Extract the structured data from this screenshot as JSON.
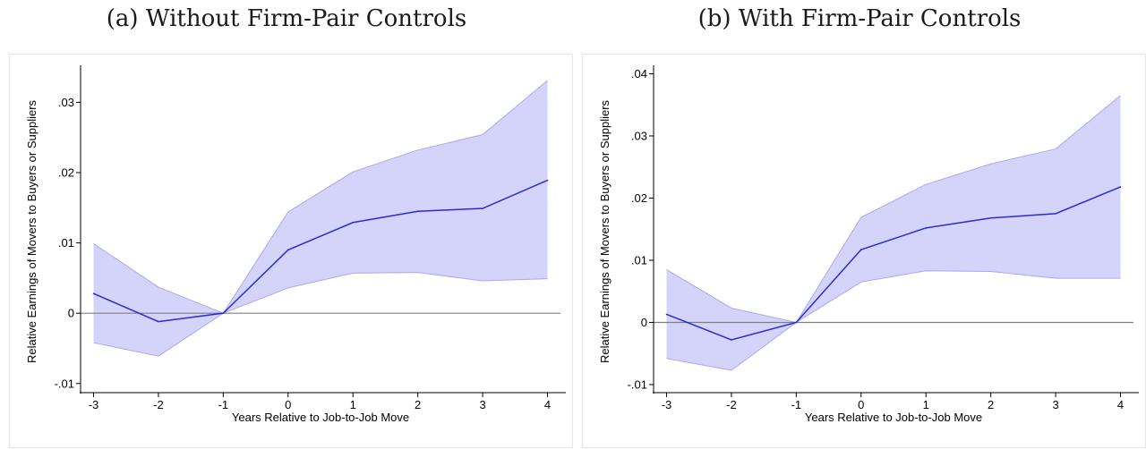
{
  "panels": [
    {
      "title": "(a) Without Firm-Pair Controls",
      "chart_data": {
        "type": "line",
        "title": "(a) Without Firm-Pair Controls",
        "xlabel": "Years Relative to Job-to-Job Move",
        "ylabel": "Relative Earnings of Movers to Buyers or Suppliers",
        "x": [
          -3,
          -2,
          -1,
          0,
          1,
          2,
          3,
          4
        ],
        "xticks": [
          "-3",
          "-2",
          "-1",
          "0",
          "1",
          "2",
          "3",
          "4"
        ],
        "yticks": [
          -0.01,
          0,
          0.01,
          0.02,
          0.03
        ],
        "ytick_labels": [
          "-.01",
          "0",
          ".01",
          ".02",
          ".03"
        ],
        "ylim": [
          -0.0113,
          0.0345
        ],
        "xlim": [
          -3.2,
          4.2
        ],
        "zero_line": true,
        "grid": false,
        "series": [
          {
            "values": [
              0.0028,
              -0.0012,
              0.0,
              0.009,
              0.0129,
              0.0145,
              0.0149,
              0.0189
            ],
            "ci_lower": [
              -0.0042,
              -0.0061,
              0.0,
              0.0036,
              0.0057,
              0.0058,
              0.0046,
              0.0049
            ],
            "ci_upper": [
              0.0099,
              0.0037,
              0.0,
              0.0144,
              0.0201,
              0.0232,
              0.0254,
              0.0331
            ],
            "line_color": "#2a2ad6",
            "band_color": "#d4d4fa",
            "band_edge_color": "#a8a8ee"
          }
        ]
      }
    },
    {
      "title": "(b) With Firm-Pair Controls",
      "chart_data": {
        "type": "line",
        "title": "(b) With Firm-Pair Controls",
        "xlabel": "Years Relative to Job-to-Job Move",
        "ylabel": "Relative Earnings of Movers to Buyers or Suppliers",
        "x": [
          -3,
          -2,
          -1,
          0,
          1,
          2,
          3,
          4
        ],
        "xticks": [
          "-3",
          "-2",
          "-1",
          "0",
          "1",
          "2",
          "3",
          "4"
        ],
        "yticks": [
          -0.01,
          0,
          0.01,
          0.02,
          0.03,
          0.04
        ],
        "ytick_labels": [
          "-.01",
          "0",
          ".01",
          ".02",
          ".03",
          ".04"
        ],
        "ylim": [
          -0.0113,
          0.0405
        ],
        "xlim": [
          -3.2,
          4.2
        ],
        "zero_line": true,
        "grid": false,
        "series": [
          {
            "values": [
              0.0013,
              -0.0028,
              0.0,
              0.0117,
              0.0152,
              0.0168,
              0.0175,
              0.0218
            ],
            "ci_lower": [
              -0.0058,
              -0.0077,
              0.0,
              0.0065,
              0.0083,
              0.0082,
              0.0071,
              0.0071
            ],
            "ci_upper": [
              0.0085,
              0.0023,
              0.0,
              0.0169,
              0.0222,
              0.0255,
              0.0279,
              0.0365
            ],
            "line_color": "#2a2ad6",
            "band_color": "#d4d4fa",
            "band_edge_color": "#a8a8ee"
          }
        ]
      }
    }
  ]
}
